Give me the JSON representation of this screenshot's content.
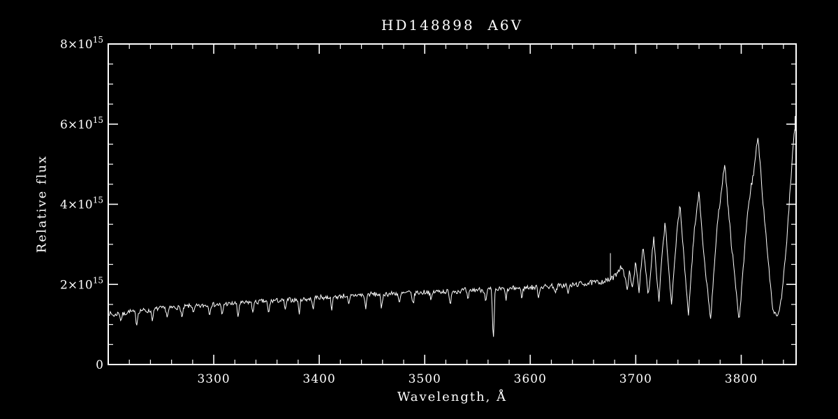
{
  "chart_data": {
    "type": "line",
    "title": "HD148898  A6V",
    "xlabel": "Wavelength, Å",
    "ylabel": "Relative flux",
    "xlim": [
      3200,
      3852
    ],
    "ylim": [
      0,
      8
    ],
    "flux_unit": "1e15",
    "x_ticks": [
      3300,
      3400,
      3500,
      3600,
      3700,
      3800
    ],
    "x_minor_step": 20,
    "y_ticks": [
      {
        "v": 0,
        "label": "0"
      },
      {
        "v": 2,
        "label": "2×10^15"
      },
      {
        "v": 4,
        "label": "4×10^15"
      },
      {
        "v": 6,
        "label": "6×10^15"
      },
      {
        "v": 8,
        "label": "8×10^15"
      }
    ],
    "y_minor_step": 0.5,
    "line_color": "#ffffff",
    "background": "#000000",
    "grid": false,
    "legend": false,
    "envelope_points": [
      [
        3201,
        1.28
      ],
      [
        3206,
        1.22
      ],
      [
        3210,
        1.3
      ],
      [
        3215,
        1.26
      ],
      [
        3220,
        1.33
      ],
      [
        3226,
        1.3
      ],
      [
        3232,
        1.36
      ],
      [
        3238,
        1.33
      ],
      [
        3244,
        1.38
      ],
      [
        3250,
        1.41
      ],
      [
        3256,
        1.39
      ],
      [
        3262,
        1.43
      ],
      [
        3268,
        1.42
      ],
      [
        3274,
        1.45
      ],
      [
        3280,
        1.47
      ],
      [
        3286,
        1.45
      ],
      [
        3292,
        1.48
      ],
      [
        3298,
        1.5
      ],
      [
        3304,
        1.49
      ],
      [
        3310,
        1.52
      ],
      [
        3316,
        1.51
      ],
      [
        3322,
        1.54
      ],
      [
        3328,
        1.53
      ],
      [
        3334,
        1.56
      ],
      [
        3340,
        1.55
      ],
      [
        3346,
        1.58
      ],
      [
        3352,
        1.57
      ],
      [
        3358,
        1.6
      ],
      [
        3364,
        1.59
      ],
      [
        3370,
        1.62
      ],
      [
        3376,
        1.61
      ],
      [
        3382,
        1.64
      ],
      [
        3388,
        1.63
      ],
      [
        3394,
        1.66
      ],
      [
        3400,
        1.68
      ],
      [
        3406,
        1.67
      ],
      [
        3412,
        1.7
      ],
      [
        3418,
        1.69
      ],
      [
        3424,
        1.72
      ],
      [
        3430,
        1.71
      ],
      [
        3436,
        1.74
      ],
      [
        3442,
        1.73
      ],
      [
        3448,
        1.76
      ],
      [
        3454,
        1.75
      ],
      [
        3460,
        1.77
      ],
      [
        3466,
        1.76
      ],
      [
        3472,
        1.78
      ],
      [
        3478,
        1.77
      ],
      [
        3484,
        1.79
      ],
      [
        3490,
        1.8
      ],
      [
        3496,
        1.79
      ],
      [
        3502,
        1.82
      ],
      [
        3508,
        1.81
      ],
      [
        3514,
        1.83
      ],
      [
        3520,
        1.82
      ],
      [
        3526,
        1.84
      ],
      [
        3532,
        1.83
      ],
      [
        3538,
        1.86
      ],
      [
        3544,
        1.85
      ],
      [
        3550,
        1.87
      ],
      [
        3556,
        1.86
      ],
      [
        3562,
        1.88
      ],
      [
        3568,
        1.87
      ],
      [
        3574,
        1.89
      ],
      [
        3580,
        1.88
      ],
      [
        3586,
        1.91
      ],
      [
        3592,
        1.9
      ],
      [
        3598,
        1.93
      ],
      [
        3604,
        1.92
      ],
      [
        3610,
        1.95
      ],
      [
        3616,
        1.94
      ],
      [
        3622,
        1.97
      ],
      [
        3628,
        1.96
      ],
      [
        3634,
        1.99
      ],
      [
        3640,
        1.98
      ],
      [
        3646,
        2.01
      ],
      [
        3652,
        2.02
      ],
      [
        3658,
        2.04
      ],
      [
        3663,
        2.05
      ],
      [
        3668,
        2.07
      ],
      [
        3672,
        2.09
      ],
      [
        3676,
        2.12
      ],
      [
        3680,
        2.2
      ],
      [
        3684,
        2.38
      ],
      [
        3687,
        2.46
      ],
      [
        3690,
        2.1
      ],
      [
        3692,
        1.92
      ],
      [
        3694,
        2.28
      ],
      [
        3697,
        1.88
      ],
      [
        3700,
        2.62
      ],
      [
        3703,
        1.82
      ],
      [
        3707,
        2.92
      ],
      [
        3710,
        2.2
      ],
      [
        3712,
        1.72
      ],
      [
        3715,
        2.6
      ],
      [
        3717,
        3.22
      ],
      [
        3720,
        2.2
      ],
      [
        3722,
        1.6
      ],
      [
        3725,
        2.8
      ],
      [
        3728,
        3.56
      ],
      [
        3731,
        2.4
      ],
      [
        3734,
        1.46
      ],
      [
        3738,
        3.0
      ],
      [
        3742,
        4.02
      ],
      [
        3746,
        2.5
      ],
      [
        3750,
        1.26
      ],
      [
        3755,
        3.2
      ],
      [
        3760,
        4.32
      ],
      [
        3765,
        2.6
      ],
      [
        3771,
        1.12
      ],
      [
        3777,
        3.4
      ],
      [
        3784,
        5.05
      ],
      [
        3790,
        3.2
      ],
      [
        3798,
        1.06
      ],
      [
        3806,
        3.8
      ],
      [
        3816,
        5.62
      ],
      [
        3822,
        3.6
      ],
      [
        3830,
        1.35
      ],
      [
        3835,
        1.22
      ],
      [
        3838,
        1.65
      ],
      [
        3842,
        2.7
      ],
      [
        3845,
        3.8
      ],
      [
        3848,
        5.0
      ],
      [
        3850,
        5.6
      ],
      [
        3852,
        6.1
      ]
    ],
    "absorption_lines": [
      {
        "x": 3212,
        "depth": 0.18
      },
      {
        "x": 3227,
        "depth": 0.3
      },
      {
        "x": 3242,
        "depth": 0.24
      },
      {
        "x": 3256,
        "depth": 0.2
      },
      {
        "x": 3270,
        "depth": 0.26
      },
      {
        "x": 3281,
        "depth": 0.18
      },
      {
        "x": 3296,
        "depth": 0.22
      },
      {
        "x": 3308,
        "depth": 0.28
      },
      {
        "x": 3323,
        "depth": 0.34
      },
      {
        "x": 3337,
        "depth": 0.22
      },
      {
        "x": 3352,
        "depth": 0.3
      },
      {
        "x": 3368,
        "depth": 0.24
      },
      {
        "x": 3381,
        "depth": 0.34
      },
      {
        "x": 3394,
        "depth": 0.26
      },
      {
        "x": 3412,
        "depth": 0.3
      },
      {
        "x": 3428,
        "depth": 0.24
      },
      {
        "x": 3444,
        "depth": 0.32
      },
      {
        "x": 3459,
        "depth": 0.38
      },
      {
        "x": 3476,
        "depth": 0.26
      },
      {
        "x": 3489,
        "depth": 0.3
      },
      {
        "x": 3506,
        "depth": 0.22
      },
      {
        "x": 3524,
        "depth": 0.34
      },
      {
        "x": 3541,
        "depth": 0.26
      },
      {
        "x": 3558,
        "depth": 0.28
      },
      {
        "x": 3565,
        "depth": 1.26
      },
      {
        "x": 3577,
        "depth": 0.24
      },
      {
        "x": 3592,
        "depth": 0.2
      },
      {
        "x": 3608,
        "depth": 0.24
      },
      {
        "x": 3624,
        "depth": 0.2
      },
      {
        "x": 3636,
        "depth": 0.22
      }
    ],
    "spikes": [
      {
        "x": 3676,
        "top": 2.78
      },
      {
        "x": 3851,
        "top": 6.2
      }
    ],
    "noise": {
      "seed": 7,
      "base": 0.03,
      "proportional": 0.018,
      "step": 0.7
    }
  }
}
